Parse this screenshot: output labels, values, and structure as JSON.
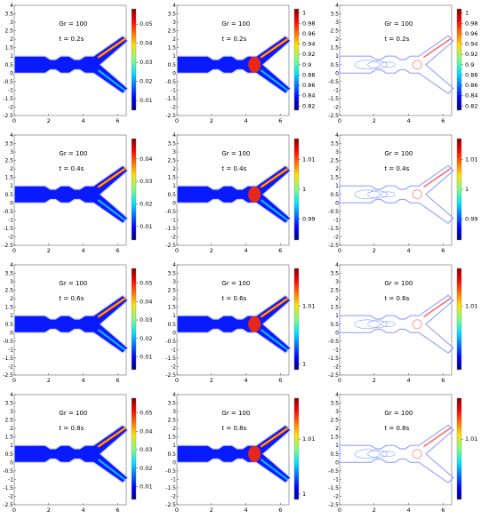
{
  "chart_data": [
    {
      "type": "contour",
      "row": 1,
      "col": 1,
      "style": "filled",
      "param_text": "Gr = 100",
      "time_text": "t = 0.2s",
      "xlim": [
        0,
        6.5
      ],
      "ylim": [
        -2.5,
        4
      ],
      "x_ticks": [
        "0",
        "2",
        "4",
        "6"
      ],
      "y_ticks": [
        "-2.5",
        "-2",
        "-1.5",
        "-1",
        "-0.5",
        "0",
        "0.5",
        "1",
        "1.5",
        "2",
        "2.5",
        "3",
        "3.5",
        "4"
      ],
      "colorbar_ticks": [
        "0.01",
        "0.02",
        "0.03",
        "0.04",
        "0.05"
      ],
      "colorbar_range": [
        0.005,
        0.058
      ],
      "colormap": "jet"
    },
    {
      "type": "contour",
      "row": 1,
      "col": 2,
      "style": "filled",
      "param_text": "Gr = 100",
      "time_text": "t = 0.2s",
      "xlim": [
        0,
        6.5
      ],
      "ylim": [
        -2.5,
        4
      ],
      "x_ticks": [
        "0",
        "2",
        "4",
        "6"
      ],
      "y_ticks": [
        "-2.5",
        "-2",
        "-1.5",
        "-1",
        "-0.5",
        "0",
        "0.5",
        "1",
        "1.5",
        "2",
        "2.5",
        "3",
        "3.5",
        "4"
      ],
      "colorbar_ticks": [
        "0.82",
        "0.84",
        "0.86",
        "0.88",
        "0.9",
        "0.92",
        "0.94",
        "0.96",
        "0.98",
        "1"
      ],
      "colorbar_range": [
        0.812,
        1.008
      ],
      "colormap": "jet"
    },
    {
      "type": "contour",
      "row": 1,
      "col": 3,
      "style": "lines",
      "param_text": "Gr = 100",
      "time_text": "t = 0.2s",
      "xlim": [
        0,
        6.5
      ],
      "ylim": [
        -2.5,
        4
      ],
      "x_ticks": [
        "0",
        "2",
        "4",
        "6"
      ],
      "y_ticks": [
        "-2.5",
        "-2",
        "-1.5",
        "-1",
        "-0.5",
        "0",
        "0.5",
        "1",
        "1.5",
        "2",
        "2.5",
        "3",
        "3.5",
        "4"
      ],
      "colorbar_ticks": [
        "0.82",
        "0.84",
        "0.86",
        "0.88",
        "0.9",
        "0.92",
        "0.94",
        "0.96",
        "0.98",
        "1"
      ],
      "colorbar_range": [
        0.812,
        1.008
      ],
      "colormap": "jet"
    },
    {
      "type": "contour",
      "row": 2,
      "col": 1,
      "style": "filled",
      "param_text": "Gr = 100",
      "time_text": "t = 0.4s",
      "xlim": [
        0,
        6.5
      ],
      "ylim": [
        -2.5,
        4
      ],
      "x_ticks": [
        "0",
        "2",
        "4",
        "6"
      ],
      "y_ticks": [
        "-2.5",
        "-2",
        "-1.5",
        "-1",
        "-0.5",
        "0",
        "0.5",
        "1",
        "1.5",
        "2",
        "2.5",
        "3",
        "3.5",
        "4"
      ],
      "colorbar_ticks": [
        "0.01",
        "0.02",
        "0.03",
        "0.04"
      ],
      "colorbar_range": [
        0.004,
        0.049
      ],
      "colormap": "jet"
    },
    {
      "type": "contour",
      "row": 2,
      "col": 2,
      "style": "filled",
      "param_text": "Gr = 100",
      "time_text": "t = 0.4s",
      "xlim": [
        0,
        6.5
      ],
      "ylim": [
        -2.5,
        4
      ],
      "x_ticks": [
        "0",
        "2",
        "4",
        "6"
      ],
      "y_ticks": [
        "-2.5",
        "-2",
        "-1.5",
        "-1",
        "-0.5",
        "0",
        "0.5",
        "1",
        "1.5",
        "2",
        "2.5",
        "3",
        "3.5",
        "4"
      ],
      "colorbar_ticks": [
        "0.99",
        "1",
        "1.01"
      ],
      "colorbar_range": [
        0.983,
        1.017
      ],
      "colormap": "jet"
    },
    {
      "type": "contour",
      "row": 2,
      "col": 3,
      "style": "lines",
      "param_text": "Gr = 100",
      "time_text": "t = 0.4s",
      "xlim": [
        0,
        6.5
      ],
      "ylim": [
        -2.5,
        4
      ],
      "x_ticks": [
        "0",
        "2",
        "4",
        "6"
      ],
      "y_ticks": [
        "-2.5",
        "-2",
        "-1.5",
        "-1",
        "-0.5",
        "0",
        "0.5",
        "1",
        "1.5",
        "2",
        "2.5",
        "3",
        "3.5",
        "4"
      ],
      "colorbar_ticks": [
        "0.99",
        "1",
        "1.01"
      ],
      "colorbar_range": [
        0.983,
        1.017
      ],
      "colormap": "jet"
    },
    {
      "type": "contour",
      "row": 3,
      "col": 1,
      "style": "filled",
      "param_text": "Gr = 100",
      "time_text": "t = 0.6s",
      "xlim": [
        0,
        6.5
      ],
      "ylim": [
        -2.5,
        4
      ],
      "x_ticks": [
        "0",
        "2",
        "4",
        "6"
      ],
      "y_ticks": [
        "-2.5",
        "-2",
        "-1.5",
        "-1",
        "-0.5",
        "0",
        "0.5",
        "1",
        "1.5",
        "2",
        "2.5",
        "3",
        "3.5",
        "4"
      ],
      "colorbar_ticks": [
        "0.01",
        "0.02",
        "0.03",
        "0.04",
        "0.05"
      ],
      "colorbar_range": [
        0.003,
        0.058
      ],
      "colormap": "jet"
    },
    {
      "type": "contour",
      "row": 3,
      "col": 2,
      "style": "filled",
      "param_text": "Gr = 100",
      "time_text": "t = 0.6s",
      "xlim": [
        0,
        6.5
      ],
      "ylim": [
        -2.5,
        4
      ],
      "x_ticks": [
        "0",
        "2",
        "4",
        "6"
      ],
      "y_ticks": [
        "-2.5",
        "-2",
        "-1.5",
        "-1",
        "-0.5",
        "0",
        "0.5",
        "1",
        "1.5",
        "2",
        "2.5",
        "3",
        "3.5",
        "4"
      ],
      "colorbar_ticks": [
        "1",
        "1.01"
      ],
      "colorbar_range": [
        0.999,
        1.0165
      ],
      "colormap": "jet"
    },
    {
      "type": "contour",
      "row": 3,
      "col": 3,
      "style": "lines",
      "param_text": "Gr = 100",
      "time_text": "t = 0.6s",
      "xlim": [
        0,
        6.5
      ],
      "ylim": [
        -2.5,
        4
      ],
      "x_ticks": [
        "0",
        "2",
        "4",
        "6"
      ],
      "y_ticks": [
        "-2.5",
        "-2",
        "-1.5",
        "-1",
        "-0.5",
        "0",
        "0.5",
        "1",
        "1.5",
        "2",
        "2.5",
        "3",
        "3.5",
        "4"
      ],
      "colorbar_ticks": [
        "1.01"
      ],
      "colorbar_range": [
        0.999,
        1.0165
      ],
      "colormap": "jet"
    },
    {
      "type": "contour",
      "row": 4,
      "col": 1,
      "style": "filled",
      "param_text": "Gr = 100",
      "time_text": "t = 0.8s",
      "xlim": [
        0,
        6.5
      ],
      "ylim": [
        -2.5,
        4
      ],
      "x_ticks": [
        "0",
        "2",
        "4",
        "6"
      ],
      "y_ticks": [
        "-2.5",
        "-2",
        "-1.5",
        "-1",
        "-0.5",
        "0",
        "0.5",
        "1",
        "1.5",
        "2",
        "2.5",
        "3",
        "3.5",
        "4"
      ],
      "colorbar_ticks": [
        "0.01",
        "0.02",
        "0.03",
        "0.04",
        "0.05"
      ],
      "colorbar_range": [
        0.003,
        0.058
      ],
      "colormap": "jet"
    },
    {
      "type": "contour",
      "row": 4,
      "col": 2,
      "style": "filled",
      "param_text": "Gr = 100",
      "time_text": "t = 0.8s",
      "xlim": [
        0,
        6.5
      ],
      "ylim": [
        -2.5,
        4
      ],
      "x_ticks": [
        "0",
        "2",
        "4",
        "6"
      ],
      "y_ticks": [
        "-2.5",
        "-2",
        "-1.5",
        "-1",
        "-0.5",
        "0",
        "0.5",
        "1",
        "1.5",
        "2",
        "2.5",
        "3",
        "3.5",
        "4"
      ],
      "colorbar_ticks": [
        "1",
        "1.01"
      ],
      "colorbar_range": [
        0.999,
        1.0175
      ],
      "colormap": "jet"
    },
    {
      "type": "contour",
      "row": 4,
      "col": 3,
      "style": "lines",
      "param_text": "Gr = 100",
      "time_text": "t = 0.8s",
      "xlim": [
        0,
        6.5
      ],
      "ylim": [
        -2.5,
        4
      ],
      "x_ticks": [
        "0",
        "2",
        "4",
        "6"
      ],
      "y_ticks": [
        "-2.5",
        "-2",
        "-1.5",
        "-1",
        "-0.5",
        "0",
        "0.5",
        "1",
        "1.5",
        "2",
        "2.5",
        "3",
        "3.5",
        "4"
      ],
      "colorbar_ticks": [
        "1.01"
      ],
      "colorbar_range": [
        0.999,
        1.0175
      ],
      "colormap": "jet"
    }
  ]
}
